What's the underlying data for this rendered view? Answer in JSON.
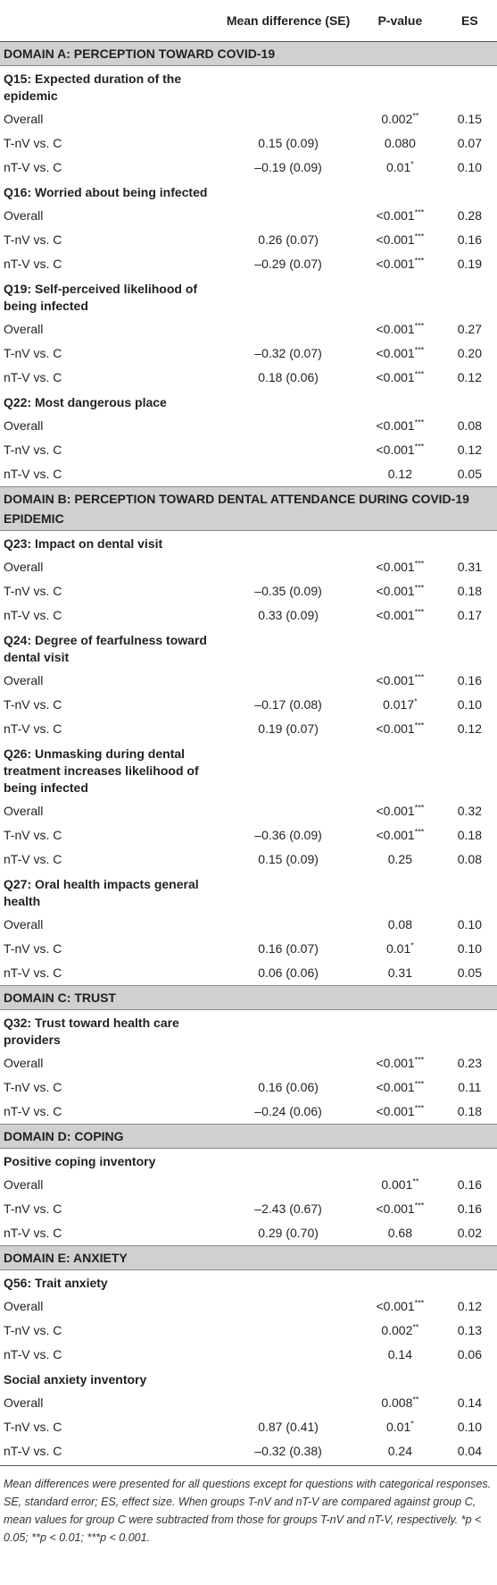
{
  "table": {
    "columns": [
      "Mean difference (SE)",
      "P-value",
      "ES"
    ],
    "sections": [
      {
        "domain": "DOMAIN A: PERCEPTION TOWARD COVID-19",
        "questions": [
          {
            "label": "Q15: Expected duration of the epidemic",
            "rows": [
              {
                "group": "Overall",
                "p": "0.002",
                "sig": "**",
                "es": "0.15"
              },
              {
                "group": "T-nV vs. C",
                "mean": "0.15 (0.09)",
                "p": "0.080",
                "es": "0.07"
              },
              {
                "group": "nT-V vs. C",
                "mean": "–0.19 (0.09)",
                "p": "0.01",
                "sig": "*",
                "es": "0.10"
              }
            ]
          },
          {
            "label": "Q16: Worried about being infected",
            "rows": [
              {
                "group": "Overall",
                "p": "<0.001",
                "sig": "***",
                "es": "0.28"
              },
              {
                "group": "T-nV vs. C",
                "mean": "0.26 (0.07)",
                "p": "<0.001",
                "sig": "***",
                "es": "0.16"
              },
              {
                "group": "nT-V vs. C",
                "mean": "–0.29 (0.07)",
                "p": "<0.001",
                "sig": "***",
                "es": "0.19"
              }
            ]
          },
          {
            "label": "Q19: Self-perceived likelihood of being infected",
            "rows": [
              {
                "group": "Overall",
                "p": "<0.001",
                "sig": "***",
                "es": "0.27"
              },
              {
                "group": "T-nV vs. C",
                "mean": "–0.32 (0.07)",
                "p": "<0.001",
                "sig": "***",
                "es": "0.20"
              },
              {
                "group": "nT-V vs. C",
                "mean": "0.18 (0.06)",
                "p": "<0.001",
                "sig": "***",
                "es": "0.12"
              }
            ]
          },
          {
            "label": "Q22: Most dangerous place",
            "rows": [
              {
                "group": "Overall",
                "p": "<0.001",
                "sig": "***",
                "es": "0.08"
              },
              {
                "group": "T-nV vs. C",
                "p": "<0.001",
                "sig": "***",
                "es": "0.12"
              },
              {
                "group": "nT-V vs. C",
                "p": "0.12",
                "es": "0.05"
              }
            ]
          }
        ]
      },
      {
        "domain": "DOMAIN B: PERCEPTION TOWARD DENTAL ATTENDANCE DURING COVID-19 EPIDEMIC",
        "questions": [
          {
            "label": "Q23: Impact on dental visit",
            "rows": [
              {
                "group": "Overall",
                "p": "<0.001",
                "sig": "***",
                "es": "0.31"
              },
              {
                "group": "T-nV vs. C",
                "mean": "–0.35 (0.09)",
                "p": "<0.001",
                "sig": "***",
                "es": "0.18"
              },
              {
                "group": "nT-V vs. C",
                "mean": "0.33 (0.09)",
                "p": "<0.001",
                "sig": "***",
                "es": "0.17"
              }
            ]
          },
          {
            "label": "Q24: Degree of fearfulness toward dental visit",
            "rows": [
              {
                "group": "Overall",
                "p": "<0.001",
                "sig": "***",
                "es": "0.16"
              },
              {
                "group": "T-nV vs. C",
                "mean": "–0.17 (0.08)",
                "p": "0.017",
                "sig": "*",
                "es": "0.10"
              },
              {
                "group": "nT-V vs. C",
                "mean": "0.19 (0.07)",
                "p": "<0.001",
                "sig": "***",
                "es": "0.12"
              }
            ]
          },
          {
            "label": "Q26: Unmasking during dental treatment increases likelihood of being infected",
            "rows": [
              {
                "group": "Overall",
                "p": "<0.001",
                "sig": "***",
                "es": "0.32"
              },
              {
                "group": "T-nV vs. C",
                "mean": "–0.36 (0.09)",
                "p": "<0.001",
                "sig": "***",
                "es": "0.18"
              },
              {
                "group": "nT-V vs. C",
                "mean": "0.15 (0.09)",
                "p": "0.25",
                "es": "0.08"
              }
            ]
          },
          {
            "label": "Q27: Oral health impacts general health",
            "rows": [
              {
                "group": "Overall",
                "p": "0.08",
                "es": "0.10"
              },
              {
                "group": "T-nV vs. C",
                "mean": "0.16 (0.07)",
                "p": "0.01",
                "sig": "*",
                "es": "0.10"
              },
              {
                "group": "nT-V vs. C",
                "mean": "0.06 (0.06)",
                "p": "0.31",
                "es": "0.05"
              }
            ]
          }
        ]
      },
      {
        "domain": "DOMAIN C: TRUST",
        "questions": [
          {
            "label": "Q32: Trust toward health care providers",
            "rows": [
              {
                "group": "Overall",
                "p": "<0.001",
                "sig": "***",
                "es": "0.23"
              },
              {
                "group": "T-nV vs. C",
                "mean": "0.16 (0.06)",
                "p": "<0.001",
                "sig": "***",
                "es": "0.11"
              },
              {
                "group": "nT-V vs. C",
                "mean": "–0.24 (0.06)",
                "p": "<0.001",
                "sig": "***",
                "es": "0.18"
              }
            ]
          }
        ]
      },
      {
        "domain": "DOMAIN D: COPING",
        "questions": [
          {
            "label": "Positive coping inventory",
            "rows": [
              {
                "group": "Overall",
                "p": "0.001",
                "sig": "**",
                "es": "0.16"
              },
              {
                "group": "T-nV vs. C",
                "mean": "–2.43 (0.67)",
                "p": "<0.001",
                "sig": "***",
                "es": "0.16"
              },
              {
                "group": "nT-V vs. C",
                "mean": "0.29 (0.70)",
                "p": "0.68",
                "es": "0.02"
              }
            ]
          }
        ]
      },
      {
        "domain": "DOMAIN E: ANXIETY",
        "questions": [
          {
            "label": "Q56: Trait anxiety",
            "rows": [
              {
                "group": "Overall",
                "p": "<0.001",
                "sig": "***",
                "es": "0.12"
              },
              {
                "group": "T-nV vs. C",
                "p": "0.002",
                "sig": "**",
                "es": "0.13"
              },
              {
                "group": "nT-V vs. C",
                "p": "0.14",
                "es": "0.06"
              }
            ]
          },
          {
            "label": "Social anxiety inventory",
            "rows": [
              {
                "group": "Overall",
                "p": "0.008",
                "sig": "**",
                "es": "0.14"
              },
              {
                "group": "T-nV vs. C",
                "mean": "0.87 (0.41)",
                "p": "0.01",
                "sig": "*",
                "es": "0.10"
              },
              {
                "group": "nT-V vs. C",
                "mean": "–0.32 (0.38)",
                "p": "0.24",
                "es": "0.04"
              }
            ]
          }
        ]
      }
    ],
    "footnote": "Mean differences were presented for all questions except for questions with categorical responses. SE, standard error; ES, effect size. When groups T-nV and nT-V are compared against group C, mean values for group C were subtracted from those for groups T-nV and nT-V, respectively. *p < 0.05; **p < 0.01; ***p < 0.001."
  }
}
